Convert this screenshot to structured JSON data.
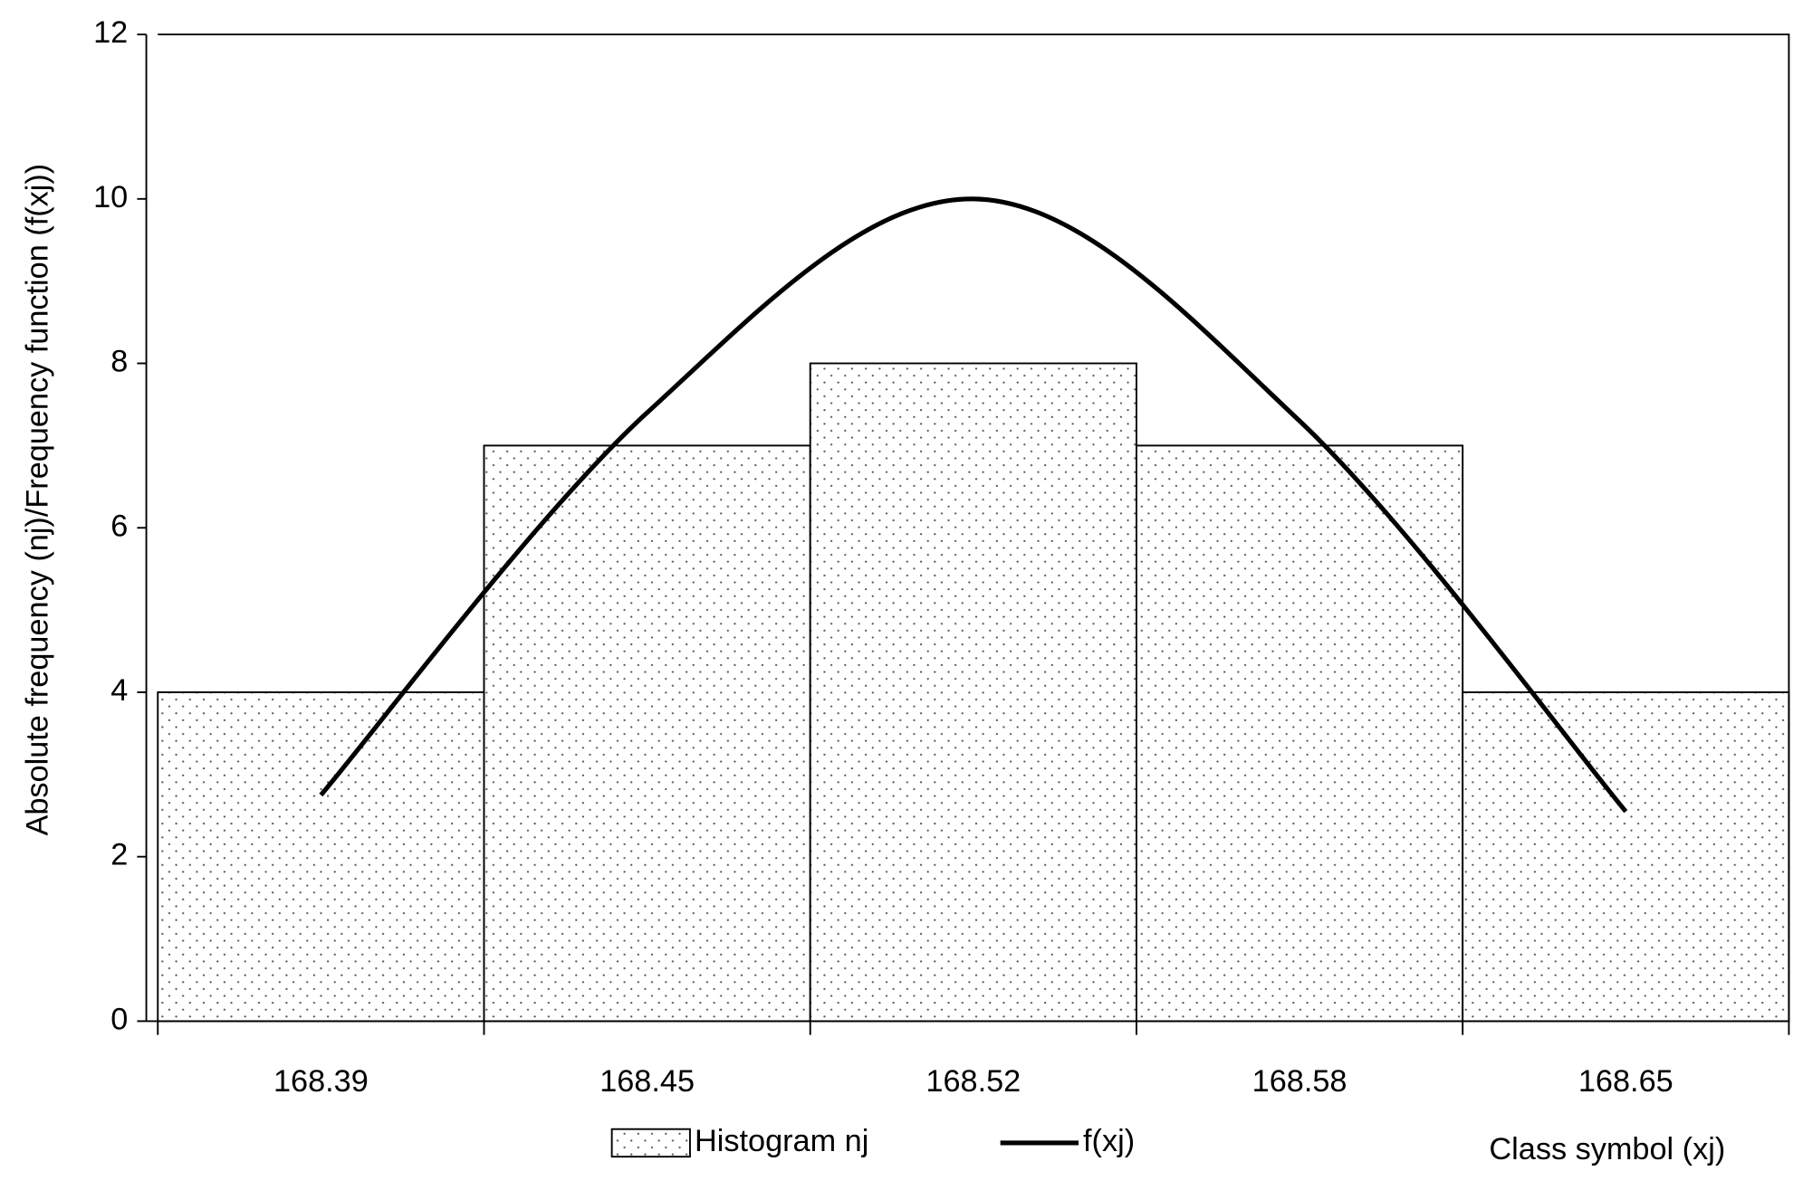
{
  "chart_data": {
    "type": "bar",
    "y_label": "Absolute frequency (nj)/Frequency function (f(xj))",
    "x_label": "Class symbol (xj)",
    "categories": [
      "168.39",
      "168.45",
      "168.52",
      "168.58",
      "168.65"
    ],
    "series": [
      {
        "name": "Histogram nj",
        "type": "bar",
        "color": "#ffffff",
        "values": [
          4,
          7,
          8,
          7,
          4
        ]
      },
      {
        "name": "f(xj)",
        "type": "line",
        "color": "#000000",
        "values": [
          2.75,
          7.4,
          10.0,
          7.3,
          2.55
        ]
      }
    ],
    "ylim": [
      0,
      12
    ],
    "yticks": [
      0,
      2,
      4,
      6,
      8,
      10,
      12
    ],
    "grid": false
  }
}
